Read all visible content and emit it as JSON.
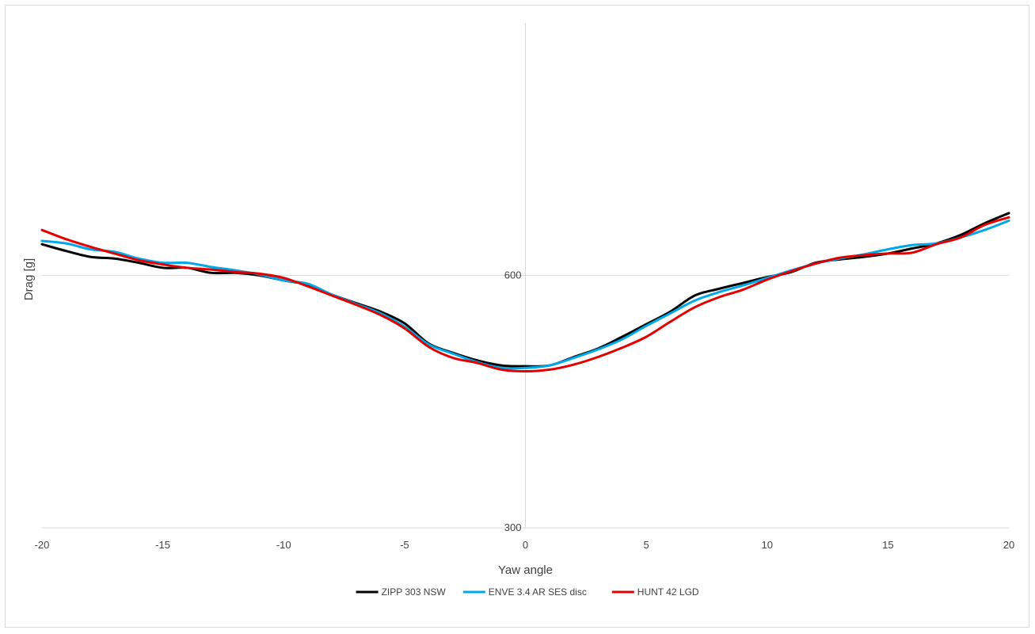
{
  "chart_data": {
    "type": "line",
    "title": "",
    "xlabel": "Yaw angle",
    "ylabel": "Drag [g]",
    "xlim": [
      -20,
      20
    ],
    "ylim": [
      300,
      900
    ],
    "x_ticks": [
      -20,
      -15,
      -10,
      -5,
      0,
      5,
      10,
      15,
      20
    ],
    "y_ticks": [
      300,
      600
    ],
    "grid": "horizontal major gridlines",
    "legend_position": "bottom",
    "x": [
      -20,
      -19,
      -18,
      -17,
      -16,
      -15,
      -14,
      -13,
      -12,
      -11,
      -10,
      -9,
      -8,
      -7,
      -6,
      -5,
      -4,
      -3,
      -2,
      -1,
      0,
      1,
      2,
      3,
      4,
      5,
      6,
      7,
      8,
      9,
      10,
      11,
      12,
      13,
      14,
      15,
      16,
      17,
      18,
      19,
      20
    ],
    "series": [
      {
        "name": "ZIPP 303 NSW",
        "color": "#000000",
        "values": [
          637,
          629,
          622,
          620,
          615,
          609,
          609,
          603,
          603,
          600,
          594,
          589,
          577,
          567,
          557,
          543,
          519,
          508,
          499,
          493,
          492,
          493,
          503,
          513,
          527,
          542,
          557,
          576,
          584,
          591,
          598,
          604,
          615,
          619,
          622,
          626,
          632,
          638,
          648,
          662,
          674
        ]
      },
      {
        "name": "ENVE 3.4 AR SES disc",
        "color": "#00a8e8",
        "values": [
          641,
          638,
          631,
          628,
          620,
          615,
          615,
          610,
          606,
          601,
          594,
          590,
          577,
          566,
          555,
          539,
          518,
          507,
          497,
          490,
          490,
          493,
          502,
          512,
          524,
          540,
          555,
          570,
          580,
          588,
          597,
          606,
          614,
          620,
          625,
          631,
          636,
          638,
          645,
          654,
          665
        ]
      },
      {
        "name": "HUNT 42 LGD",
        "color": "#e30000",
        "values": [
          654,
          643,
          634,
          626,
          618,
          613,
          609,
          607,
          604,
          602,
          597,
          587,
          576,
          565,
          553,
          537,
          515,
          502,
          496,
          488,
          486,
          488,
          494,
          503,
          514,
          527,
          545,
          562,
          574,
          583,
          595,
          605,
          614,
          621,
          624,
          626,
          627,
          637,
          645,
          660,
          669
        ]
      }
    ]
  }
}
